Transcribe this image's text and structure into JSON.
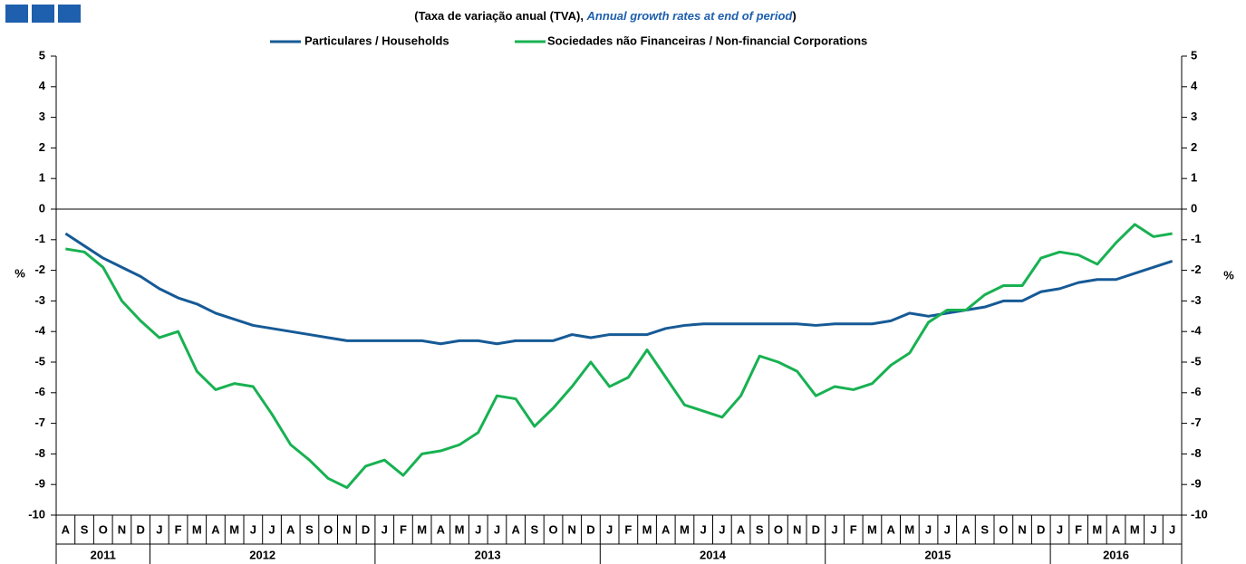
{
  "chart_data": {
    "type": "line",
    "title": [
      "(Taxa de variação anual (TVA), ",
      "Annual growth rates at end of period",
      ")"
    ],
    "ylabel": "%",
    "y2label": "%",
    "categories": [
      "A",
      "S",
      "O",
      "N",
      "D",
      "J",
      "F",
      "M",
      "A",
      "M",
      "J",
      "J",
      "A",
      "S",
      "O",
      "N",
      "D",
      "J",
      "F",
      "M",
      "A",
      "M",
      "J",
      "J",
      "A",
      "S",
      "O",
      "N",
      "D",
      "J",
      "F",
      "M",
      "A",
      "M",
      "J",
      "J",
      "A",
      "S",
      "O",
      "N",
      "D",
      "J",
      "F",
      "M",
      "A",
      "M",
      "J",
      "J",
      "A",
      "S",
      "O",
      "N",
      "D",
      "J",
      "F",
      "M",
      "A",
      "M",
      "J",
      "J"
    ],
    "years": [
      "2011",
      "2012",
      "2013",
      "2014",
      "2015",
      "2016"
    ],
    "series": [
      {
        "name": "Particulares / Households",
        "color": "#165a96",
        "values": [
          -0.8,
          -1.2,
          -1.6,
          -1.9,
          -2.2,
          -2.6,
          -2.9,
          -3.1,
          -3.4,
          -3.6,
          -3.8,
          -3.9,
          -4.0,
          -4.1,
          -4.2,
          -4.3,
          -4.3,
          -4.3,
          -4.3,
          -4.3,
          -4.4,
          -4.3,
          -4.3,
          -4.4,
          -4.3,
          -4.3,
          -4.3,
          -4.1,
          -4.2,
          -4.1,
          -4.1,
          -4.1,
          -3.9,
          -3.8,
          -3.75,
          -3.75,
          -3.75,
          -3.75,
          -3.75,
          -3.75,
          -3.8,
          -3.75,
          -3.75,
          -3.75,
          -3.65,
          -3.4,
          -3.5,
          -3.4,
          -3.3,
          -3.2,
          -3.0,
          -3.0,
          -2.7,
          -2.6,
          -2.4,
          -2.3,
          -2.3,
          -2.1,
          -1.9,
          -1.7
        ]
      },
      {
        "name": "Sociedades não Financeiras / Non-financial Corporations",
        "color": "#18b152",
        "values": [
          -1.3,
          -1.4,
          -1.9,
          -3.0,
          -3.65,
          -4.2,
          -4.0,
          -5.3,
          -5.9,
          -5.7,
          -5.8,
          -6.7,
          -7.7,
          -8.2,
          -8.8,
          -9.1,
          -8.4,
          -8.2,
          -8.7,
          -8.0,
          -7.9,
          -7.7,
          -7.3,
          -6.1,
          -6.2,
          -7.1,
          -6.5,
          -5.8,
          -5.0,
          -5.8,
          -5.5,
          -4.6,
          -5.5,
          -6.4,
          -6.6,
          -6.8,
          -6.1,
          -4.8,
          -5.0,
          -5.3,
          -6.1,
          -5.8,
          -5.9,
          -5.7,
          -5.1,
          -4.7,
          -3.7,
          -3.3,
          -3.3,
          -2.8,
          -2.5,
          -2.5,
          -1.6,
          -1.4,
          -1.5,
          -1.8,
          -1.1,
          -0.5,
          -0.9,
          -0.8
        ]
      }
    ],
    "ylim": [
      -10,
      5
    ],
    "yticks": [
      -10,
      -9,
      -8,
      -7,
      -6,
      -5,
      -4,
      -3,
      -2,
      -1,
      0,
      1,
      2,
      3,
      4,
      5
    ],
    "y2lim": [
      -10,
      5
    ],
    "y2ticks": [
      -10,
      -9,
      -8,
      -7,
      -6,
      -5,
      -4,
      -3,
      -2,
      -1,
      0,
      1,
      2,
      3,
      4,
      5
    ]
  }
}
